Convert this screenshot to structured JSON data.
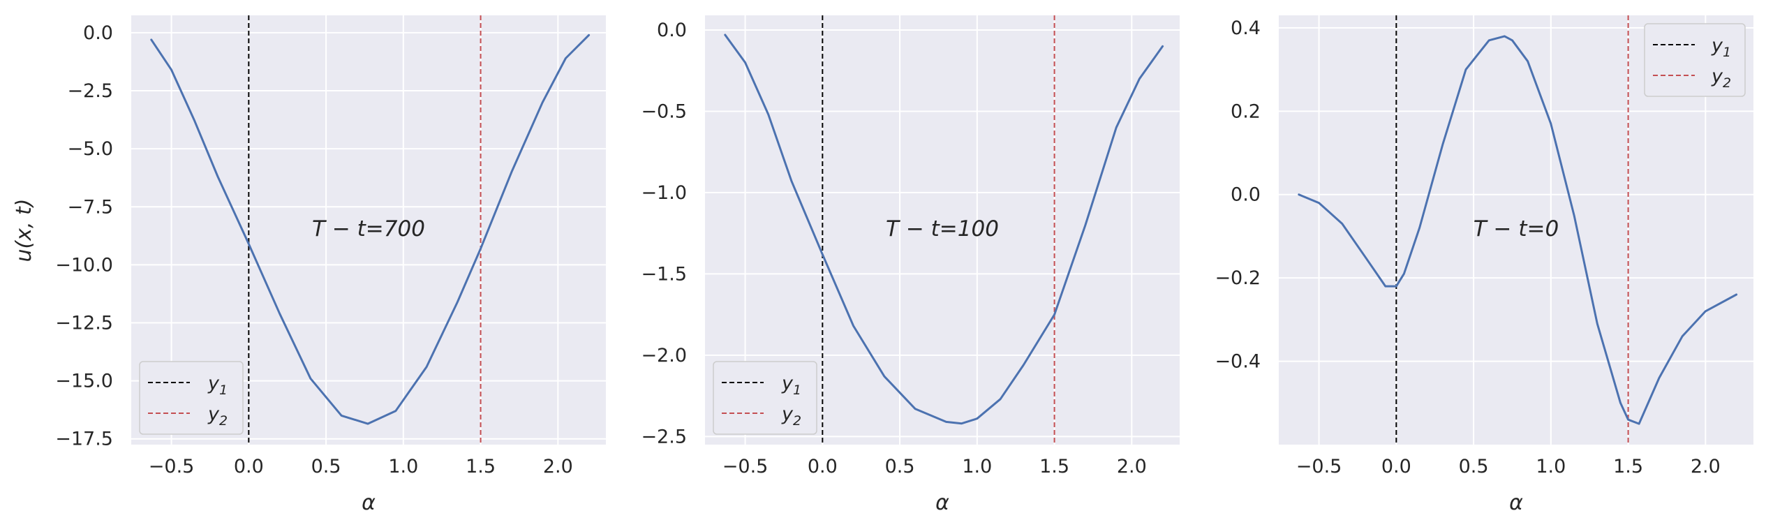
{
  "chart_data": [
    {
      "type": "line",
      "xlabel": "α",
      "ylabel": "u(x, t)",
      "annotation": "T − t=700",
      "xlim": [
        -0.76,
        2.31
      ],
      "ylim": [
        -17.75,
        0.75
      ],
      "xticks": [
        -0.5,
        0.0,
        0.5,
        1.0,
        1.5,
        2.0
      ],
      "xtick_labels": [
        "−0.5",
        "0.0",
        "0.5",
        "1.0",
        "1.5",
        "2.0"
      ],
      "yticks": [
        0.0,
        -2.5,
        -5.0,
        -7.5,
        -10.0,
        -12.5,
        -15.0,
        -17.5
      ],
      "ytick_labels": [
        "0.0",
        "−2.5",
        "−5.0",
        "−7.5",
        "−10.0",
        "−12.5",
        "−15.0",
        "−17.5"
      ],
      "grid": true,
      "legend_position": "lower-left",
      "vlines": [
        {
          "name": "y1",
          "x": 0.0,
          "color": "#000000"
        },
        {
          "name": "y2",
          "x": 1.5,
          "color": "#c44e52"
        }
      ],
      "series": [
        {
          "color": "#4c72b0",
          "x": [
            -0.63,
            -0.5,
            -0.35,
            -0.2,
            0.0,
            0.2,
            0.4,
            0.6,
            0.77,
            0.95,
            1.15,
            1.35,
            1.5,
            1.7,
            1.9,
            2.05,
            2.2
          ],
          "y": [
            -0.3,
            -1.6,
            -3.8,
            -6.2,
            -9.1,
            -12.1,
            -14.9,
            -16.5,
            -16.85,
            -16.3,
            -14.4,
            -11.6,
            -9.3,
            -6.0,
            -3.0,
            -1.1,
            -0.1
          ]
        }
      ]
    },
    {
      "type": "line",
      "xlabel": "α",
      "ylabel": "",
      "annotation": "T − t=100",
      "xlim": [
        -0.76,
        2.31
      ],
      "ylim": [
        -2.55,
        0.09
      ],
      "xticks": [
        -0.5,
        0.0,
        0.5,
        1.0,
        1.5,
        2.0
      ],
      "xtick_labels": [
        "−0.5",
        "0.0",
        "0.5",
        "1.0",
        "1.5",
        "2.0"
      ],
      "yticks": [
        0.0,
        -0.5,
        -1.0,
        -1.5,
        -2.0,
        -2.5
      ],
      "ytick_labels": [
        "0.0",
        "−0.5",
        "−1.0",
        "−1.5",
        "−2.0",
        "−2.5"
      ],
      "grid": true,
      "legend_position": "lower-left",
      "vlines": [
        {
          "name": "y1",
          "x": 0.0,
          "color": "#000000"
        },
        {
          "name": "y2",
          "x": 1.5,
          "color": "#c44e52"
        }
      ],
      "series": [
        {
          "color": "#4c72b0",
          "x": [
            -0.63,
            -0.5,
            -0.35,
            -0.2,
            0.0,
            0.2,
            0.4,
            0.6,
            0.8,
            0.9,
            1.0,
            1.15,
            1.3,
            1.5,
            1.7,
            1.9,
            2.05,
            2.2
          ],
          "y": [
            -0.03,
            -0.2,
            -0.52,
            -0.93,
            -1.38,
            -1.82,
            -2.13,
            -2.33,
            -2.41,
            -2.42,
            -2.39,
            -2.27,
            -2.06,
            -1.75,
            -1.2,
            -0.6,
            -0.3,
            -0.1
          ]
        }
      ]
    },
    {
      "type": "line",
      "xlabel": "α",
      "ylabel": "",
      "annotation": "T − t=0",
      "xlim": [
        -0.76,
        2.31
      ],
      "ylim": [
        -0.6,
        0.43
      ],
      "xticks": [
        -0.5,
        0.0,
        0.5,
        1.0,
        1.5,
        2.0
      ],
      "xtick_labels": [
        "−0.5",
        "0.0",
        "0.5",
        "1.0",
        "1.5",
        "2.0"
      ],
      "yticks": [
        0.4,
        0.2,
        0.0,
        -0.2,
        -0.4
      ],
      "ytick_labels": [
        "0.4",
        "0.2",
        "0.0",
        "−0.2",
        "−0.4"
      ],
      "grid": true,
      "legend_position": "upper-right",
      "vlines": [
        {
          "name": "y1",
          "x": 0.0,
          "color": "#000000"
        },
        {
          "name": "y2",
          "x": 1.5,
          "color": "#c44e52"
        }
      ],
      "series": [
        {
          "color": "#4c72b0",
          "x": [
            -0.63,
            -0.5,
            -0.35,
            -0.2,
            -0.07,
            0.0,
            0.05,
            0.15,
            0.3,
            0.45,
            0.6,
            0.7,
            0.75,
            0.85,
            1.0,
            1.15,
            1.3,
            1.45,
            1.5,
            1.57,
            1.7,
            1.85,
            2.0,
            2.2
          ],
          "y": [
            0.0,
            -0.02,
            -0.07,
            -0.15,
            -0.22,
            -0.22,
            -0.19,
            -0.08,
            0.12,
            0.3,
            0.37,
            0.38,
            0.37,
            0.32,
            0.17,
            -0.05,
            -0.31,
            -0.5,
            -0.54,
            -0.55,
            -0.44,
            -0.34,
            -0.28,
            -0.24
          ]
        }
      ]
    }
  ],
  "legend": {
    "y1_label": "y",
    "y1_sub": "1",
    "y2_label": "y",
    "y2_sub": "2"
  },
  "colors": {
    "axes_bg": "#eaeaf2",
    "grid": "#ffffff",
    "line": "#4c72b0",
    "y2": "#c44e52"
  }
}
